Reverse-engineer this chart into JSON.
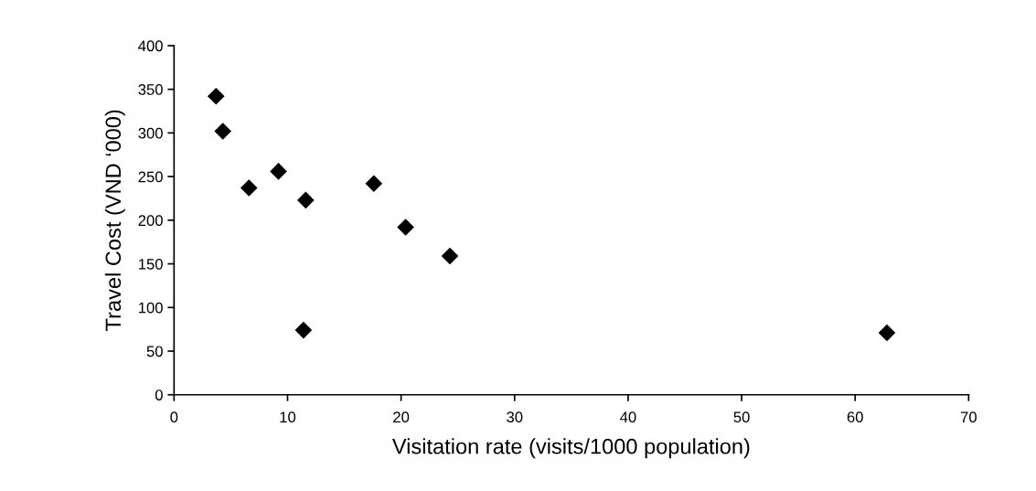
{
  "chart_data": {
    "type": "scatter",
    "xlabel": "Visitation rate (visits/1000 population)",
    "ylabel": "Travel Cost (VND ‘000)",
    "x": [
      3.7,
      4.3,
      6.6,
      9.2,
      11.6,
      11.4,
      17.6,
      20.4,
      24.3,
      62.8
    ],
    "series": [
      {
        "color": "#000000",
        "values": [
          342,
          302,
          237,
          256,
          223,
          74,
          242,
          192,
          159,
          71
        ]
      }
    ],
    "marker": "diamond",
    "grid": false,
    "legend": false,
    "xlim": [
      0,
      70
    ],
    "xticks": [
      0,
      10,
      20,
      30,
      40,
      50,
      60,
      70
    ],
    "ylim": [
      0,
      400
    ],
    "yticks": [
      0,
      50,
      100,
      150,
      200,
      250,
      300,
      350,
      400
    ]
  }
}
